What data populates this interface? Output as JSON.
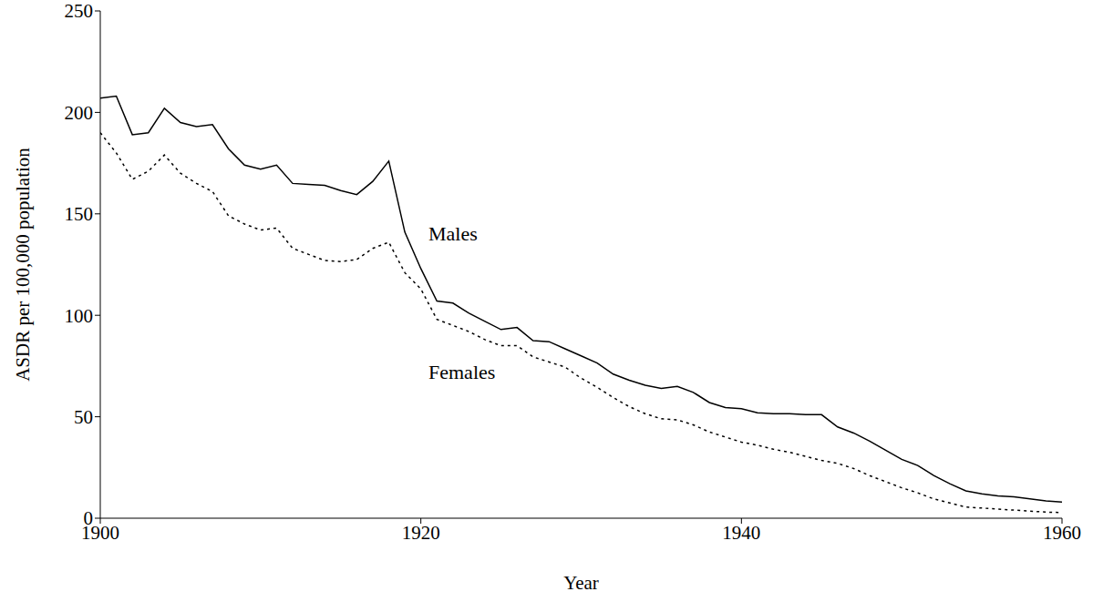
{
  "chart_data": {
    "type": "line",
    "x_label": "Year",
    "y_label": "ASDR per 100,000 population",
    "x": [
      1900,
      1901,
      1902,
      1903,
      1904,
      1905,
      1906,
      1907,
      1908,
      1909,
      1910,
      1911,
      1912,
      1913,
      1914,
      1915,
      1916,
      1917,
      1918,
      1919,
      1920,
      1921,
      1922,
      1923,
      1924,
      1925,
      1926,
      1927,
      1928,
      1929,
      1930,
      1931,
      1932,
      1933,
      1934,
      1935,
      1936,
      1937,
      1938,
      1939,
      1940,
      1941,
      1942,
      1943,
      1944,
      1945,
      1946,
      1947,
      1948,
      1949,
      1950,
      1951,
      1952,
      1953,
      1954,
      1955,
      1956,
      1957,
      1958,
      1959,
      1960
    ],
    "series": [
      {
        "name": "Males",
        "color": "#000000",
        "line_style": "solid",
        "values": [
          207,
          208,
          189,
          190,
          202,
          195,
          193,
          194,
          182,
          174,
          172,
          174,
          165,
          164.5,
          164,
          161.5,
          159.5,
          166,
          176,
          141,
          123,
          107,
          106,
          101,
          97,
          93,
          94,
          87.5,
          87,
          83.5,
          80,
          76.5,
          71,
          68,
          65.5,
          64,
          65,
          62,
          57,
          54.5,
          54,
          52,
          51.5,
          51.5,
          51,
          51,
          45,
          42,
          38,
          33.5,
          29,
          26,
          21,
          17,
          13.5,
          12,
          11,
          10.5,
          9.5,
          8.5,
          8
        ]
      },
      {
        "name": "Females",
        "color": "#000000",
        "line_style": "dotted",
        "values": [
          190,
          180,
          167,
          171,
          179,
          170,
          165,
          161,
          149,
          145,
          142,
          143,
          133,
          130,
          127,
          126.5,
          127.5,
          133,
          136,
          121,
          113,
          98,
          95,
          92,
          88,
          85,
          85,
          79.5,
          77,
          74.5,
          69,
          64.5,
          59.5,
          55,
          51.5,
          49,
          48.5,
          46,
          42.5,
          40,
          37.5,
          36,
          34,
          32.5,
          30.5,
          28.5,
          27,
          24.5,
          21,
          18,
          15,
          12.5,
          9.5,
          7.5,
          5.5,
          5,
          4.5,
          4,
          3.5,
          3,
          2.8
        ]
      }
    ],
    "xlim": [
      1900,
      1960
    ],
    "xticks": [
      1900,
      1920,
      1940,
      1960
    ],
    "ylim": [
      0,
      250
    ],
    "yticks": [
      0,
      50,
      100,
      150,
      200,
      250
    ],
    "grid": false
  }
}
